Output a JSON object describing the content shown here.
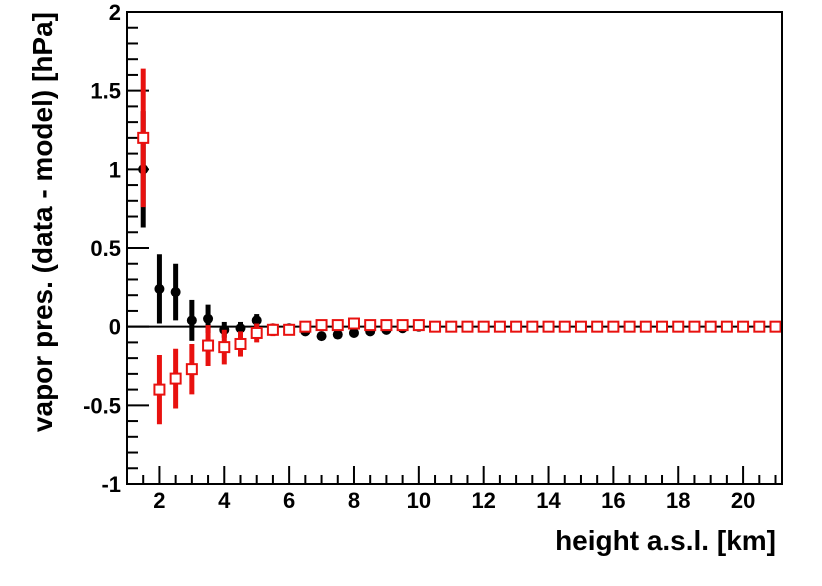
{
  "chart_data": {
    "type": "scatter",
    "title": "",
    "xlabel": "height a.s.l. [km]",
    "ylabel": "vapor pres. (data - model) [hPa]",
    "xlim": [
      1.0,
      21.2
    ],
    "ylim": [
      -1,
      2
    ],
    "x_ticks": [
      2,
      4,
      6,
      8,
      10,
      12,
      14,
      16,
      18,
      20
    ],
    "x_tick_labels": [
      "2",
      "4",
      "6",
      "8",
      "10",
      "12",
      "14",
      "16",
      "18",
      "20"
    ],
    "y_ticks": [
      -1,
      -0.5,
      0,
      0.5,
      1,
      1.5,
      2
    ],
    "y_tick_labels": [
      "-1",
      "-0.5",
      "0",
      "0.5",
      "1",
      "1.5",
      "2"
    ],
    "zero_line": true,
    "grid": false,
    "legend": null,
    "series": [
      {
        "marker": "filled-circle",
        "color": "#000000",
        "points": [
          {
            "x": 1.5,
            "y": 1.0,
            "err": 0.37
          },
          {
            "x": 2.0,
            "y": 0.24,
            "err": 0.22
          },
          {
            "x": 2.5,
            "y": 0.22,
            "err": 0.18
          },
          {
            "x": 3.0,
            "y": 0.04,
            "err": 0.13
          },
          {
            "x": 3.5,
            "y": 0.05,
            "err": 0.09
          },
          {
            "x": 4.0,
            "y": -0.02,
            "err": 0.05
          },
          {
            "x": 4.5,
            "y": -0.01,
            "err": 0.04
          },
          {
            "x": 5.0,
            "y": 0.04,
            "err": 0.04
          },
          {
            "x": 5.5,
            "y": -0.01,
            "err": 0.02
          },
          {
            "x": 6.0,
            "y": -0.01,
            "err": 0.01
          },
          {
            "x": 6.5,
            "y": -0.03,
            "err": 0.01
          },
          {
            "x": 7.0,
            "y": -0.06,
            "err": 0.01
          },
          {
            "x": 7.5,
            "y": -0.05,
            "err": 0.01
          },
          {
            "x": 8.0,
            "y": -0.04,
            "err": 0.01
          },
          {
            "x": 8.5,
            "y": -0.03,
            "err": 0.01
          },
          {
            "x": 9.0,
            "y": -0.02,
            "err": 0.005
          },
          {
            "x": 9.5,
            "y": -0.01,
            "err": 0.005
          },
          {
            "x": 10.0,
            "y": 0.0,
            "err": 0.0
          },
          {
            "x": 10.5,
            "y": 0.0,
            "err": 0.0
          },
          {
            "x": 11.0,
            "y": 0.0,
            "err": 0.0
          },
          {
            "x": 11.5,
            "y": 0.0,
            "err": 0.0
          },
          {
            "x": 12.0,
            "y": 0.0,
            "err": 0.0
          },
          {
            "x": 12.5,
            "y": 0.0,
            "err": 0.0
          },
          {
            "x": 13.0,
            "y": 0.0,
            "err": 0.0
          },
          {
            "x": 13.5,
            "y": 0.0,
            "err": 0.0
          },
          {
            "x": 14.0,
            "y": 0.0,
            "err": 0.0
          },
          {
            "x": 14.5,
            "y": 0.0,
            "err": 0.0
          },
          {
            "x": 15.0,
            "y": 0.0,
            "err": 0.0
          },
          {
            "x": 15.5,
            "y": 0.0,
            "err": 0.0
          },
          {
            "x": 16.0,
            "y": 0.0,
            "err": 0.0
          },
          {
            "x": 16.5,
            "y": 0.0,
            "err": 0.0
          },
          {
            "x": 17.0,
            "y": 0.0,
            "err": 0.0
          },
          {
            "x": 17.5,
            "y": 0.0,
            "err": 0.0
          },
          {
            "x": 18.0,
            "y": 0.0,
            "err": 0.0
          },
          {
            "x": 18.5,
            "y": 0.0,
            "err": 0.0
          },
          {
            "x": 19.0,
            "y": 0.0,
            "err": 0.0
          },
          {
            "x": 19.5,
            "y": 0.0,
            "err": 0.0
          },
          {
            "x": 20.0,
            "y": 0.0,
            "err": 0.0
          },
          {
            "x": 20.5,
            "y": 0.0,
            "err": 0.0
          },
          {
            "x": 21.0,
            "y": 0.0,
            "err": 0.0
          }
        ]
      },
      {
        "marker": "open-square",
        "color": "#e8110f",
        "points": [
          {
            "x": 1.5,
            "y": 1.2,
            "err": 0.44
          },
          {
            "x": 2.0,
            "y": -0.4,
            "err": 0.22
          },
          {
            "x": 2.5,
            "y": -0.33,
            "err": 0.19
          },
          {
            "x": 3.0,
            "y": -0.27,
            "err": 0.16
          },
          {
            "x": 3.5,
            "y": -0.12,
            "err": 0.13
          },
          {
            "x": 4.0,
            "y": -0.13,
            "err": 0.11
          },
          {
            "x": 4.5,
            "y": -0.11,
            "err": 0.08
          },
          {
            "x": 5.0,
            "y": -0.04,
            "err": 0.06
          },
          {
            "x": 5.5,
            "y": -0.02,
            "err": 0.04
          },
          {
            "x": 6.0,
            "y": -0.02,
            "err": 0.02
          },
          {
            "x": 6.5,
            "y": 0.0,
            "err": 0.015
          },
          {
            "x": 7.0,
            "y": 0.01,
            "err": 0.01
          },
          {
            "x": 7.5,
            "y": 0.01,
            "err": 0.01
          },
          {
            "x": 8.0,
            "y": 0.02,
            "err": 0.01
          },
          {
            "x": 8.5,
            "y": 0.01,
            "err": 0.01
          },
          {
            "x": 9.0,
            "y": 0.01,
            "err": 0.005
          },
          {
            "x": 9.5,
            "y": 0.01,
            "err": 0.005
          },
          {
            "x": 10.0,
            "y": 0.01,
            "err": 0.0
          },
          {
            "x": 10.5,
            "y": 0.0,
            "err": 0.0
          },
          {
            "x": 11.0,
            "y": 0.0,
            "err": 0.0
          },
          {
            "x": 11.5,
            "y": 0.0,
            "err": 0.0
          },
          {
            "x": 12.0,
            "y": 0.0,
            "err": 0.0
          },
          {
            "x": 12.5,
            "y": 0.0,
            "err": 0.0
          },
          {
            "x": 13.0,
            "y": 0.0,
            "err": 0.0
          },
          {
            "x": 13.5,
            "y": 0.0,
            "err": 0.0
          },
          {
            "x": 14.0,
            "y": 0.0,
            "err": 0.0
          },
          {
            "x": 14.5,
            "y": 0.0,
            "err": 0.0
          },
          {
            "x": 15.0,
            "y": 0.0,
            "err": 0.0
          },
          {
            "x": 15.5,
            "y": 0.0,
            "err": 0.0
          },
          {
            "x": 16.0,
            "y": 0.0,
            "err": 0.0
          },
          {
            "x": 16.5,
            "y": 0.0,
            "err": 0.0
          },
          {
            "x": 17.0,
            "y": 0.0,
            "err": 0.0
          },
          {
            "x": 17.5,
            "y": 0.0,
            "err": 0.0
          },
          {
            "x": 18.0,
            "y": 0.0,
            "err": 0.0
          },
          {
            "x": 18.5,
            "y": 0.0,
            "err": 0.0
          },
          {
            "x": 19.0,
            "y": 0.0,
            "err": 0.0
          },
          {
            "x": 19.5,
            "y": 0.0,
            "err": 0.0
          },
          {
            "x": 20.0,
            "y": 0.0,
            "err": 0.0
          },
          {
            "x": 20.5,
            "y": 0.0,
            "err": 0.0
          },
          {
            "x": 21.0,
            "y": 0.0,
            "err": 0.0
          }
        ]
      }
    ]
  }
}
